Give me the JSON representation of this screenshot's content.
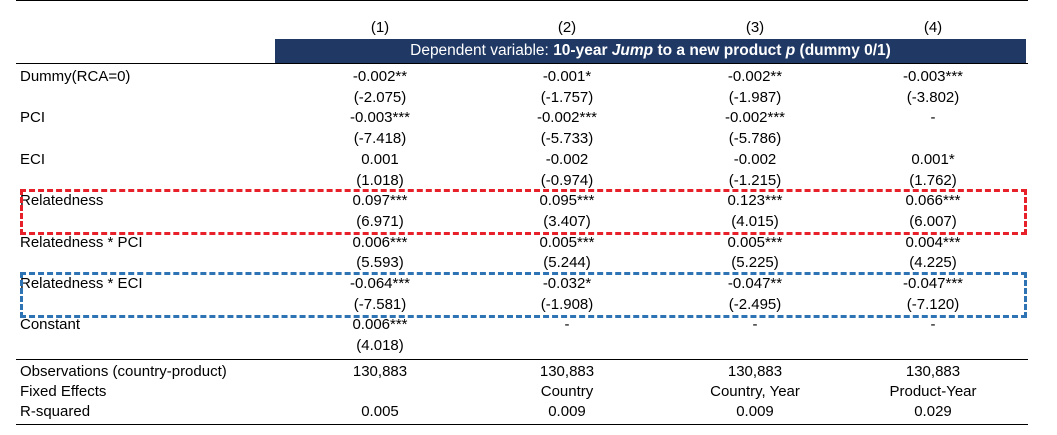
{
  "header": {
    "columns": [
      "(1)",
      "(2)",
      "(3)",
      "(4)"
    ],
    "banner_prefix": "Dependent variable:",
    "banner_bold1": "10-year",
    "banner_italic": "Jump",
    "banner_bold2": "to a new product",
    "banner_var": "p",
    "banner_bold3": "(dummy 0/1)"
  },
  "rows": [
    {
      "label": "Dummy(RCA=0)",
      "coef": [
        "-0.002**",
        "-0.001*",
        "-0.002**",
        "-0.003***"
      ],
      "t": [
        "(-2.075)",
        "(-1.757)",
        "(-1.987)",
        "(-3.802)"
      ]
    },
    {
      "label": "PCI",
      "coef": [
        "-0.003***",
        "-0.002***",
        "-0.002***",
        "-"
      ],
      "t": [
        "(-7.418)",
        "(-5.733)",
        "(-5.786)",
        ""
      ]
    },
    {
      "label": "ECI",
      "coef": [
        "0.001",
        "-0.002",
        "-0.002",
        "0.001*"
      ],
      "t": [
        "(1.018)",
        "(-0.974)",
        "(-1.215)",
        "(1.762)"
      ]
    },
    {
      "label": "Relatedness",
      "coef": [
        "0.097***",
        "0.095***",
        "0.123***",
        "0.066***"
      ],
      "t": [
        "(6.971)",
        "(3.407)",
        "(4.015)",
        "(6.007)"
      ]
    },
    {
      "label": "Relatedness * PCI",
      "coef": [
        "0.006***",
        "0.005***",
        "0.005***",
        "0.004***"
      ],
      "t": [
        "(5.593)",
        "(5.244)",
        "(5.225)",
        "(4.225)"
      ]
    },
    {
      "label": "Relatedness * ECI",
      "coef": [
        "-0.064***",
        "-0.032*",
        "-0.047**",
        "-0.047***"
      ],
      "t": [
        "(-7.581)",
        "(-1.908)",
        "(-2.495)",
        "(-7.120)"
      ]
    },
    {
      "label": "Constant",
      "coef": [
        "0.006***",
        "-",
        "-",
        "-"
      ],
      "t": [
        "(4.018)",
        "",
        "",
        ""
      ]
    }
  ],
  "footer": [
    {
      "label": "Observations (country-product)",
      "values": [
        "130,883",
        "130,883",
        "130,883",
        "130,883"
      ]
    },
    {
      "label": "Fixed Effects",
      "values": [
        "",
        "Country",
        "Country, Year",
        "Product-Year"
      ]
    },
    {
      "label": "R-squared",
      "values": [
        "0.005",
        "0.009",
        "0.009",
        "0.029"
      ]
    }
  ],
  "colors": {
    "banner_bg": "#1f3864",
    "highlight_red": "#e8202a",
    "highlight_blue": "#2e74b5"
  }
}
